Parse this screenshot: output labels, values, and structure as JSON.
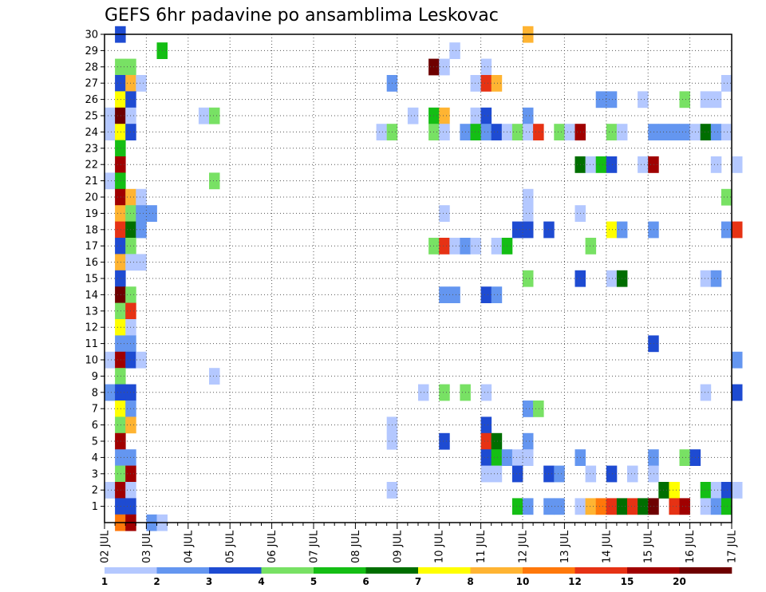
{
  "chart_data": {
    "type": "heatmap",
    "title": "GEFS 6hr padavine po ansamblima Leskovac",
    "xlabel": "",
    "ylabel": "",
    "x_tick_labels": [
      "02 JUL",
      "03 JUL",
      "04 JUL",
      "05 JUL",
      "06 JUL",
      "07 JUL",
      "08 JUL",
      "09 JUL",
      "10 JUL",
      "11 JUL",
      "12 JUL",
      "13 JUL",
      "14 JUL",
      "15 JUL",
      "16 JUL",
      "17 JUL"
    ],
    "y_tick_labels": [
      "1",
      "2",
      "3",
      "4",
      "5",
      "6",
      "7",
      "8",
      "9",
      "10",
      "11",
      "12",
      "13",
      "14",
      "15",
      "16",
      "17",
      "18",
      "19",
      "20",
      "21",
      "22",
      "23",
      "24",
      "25",
      "26",
      "27",
      "28",
      "29",
      "30"
    ],
    "x_range_steps": [
      0,
      60
    ],
    "y_range_members": [
      0,
      30
    ],
    "grid": true,
    "legend_placement": "bottom",
    "colorbar": {
      "labels": [
        "1",
        "2",
        "3",
        "4",
        "5",
        "6",
        "7",
        "8",
        "10",
        "12",
        "15",
        "20"
      ],
      "colors": [
        "#b4c8ff",
        "#6496f0",
        "#1e4bd2",
        "#78e164",
        "#14be14",
        "#006e00",
        "#ffff00",
        "#ffb432",
        "#ff780a",
        "#e63214",
        "#a00000",
        "#6e0000"
      ]
    },
    "cells": [
      [
        30,
        2.25,
        3
      ],
      [
        30,
        12,
        8
      ],
      [
        29,
        3.25,
        5
      ],
      [
        29,
        10.25,
        1
      ],
      [
        28,
        2.25,
        4
      ],
      [
        28,
        2.5,
        4
      ],
      [
        28,
        9.75,
        12
      ],
      [
        28,
        10,
        1
      ],
      [
        28,
        11,
        1
      ],
      [
        27,
        2.25,
        3
      ],
      [
        27,
        2.5,
        8
      ],
      [
        27,
        2.75,
        1
      ],
      [
        27,
        8.75,
        2
      ],
      [
        27,
        10.75,
        1
      ],
      [
        27,
        11,
        10
      ],
      [
        27,
        11.25,
        8
      ],
      [
        27,
        16.75,
        1
      ],
      [
        26,
        2.25,
        7
      ],
      [
        26,
        2.5,
        3
      ],
      [
        26,
        13.75,
        2
      ],
      [
        26,
        14,
        2
      ],
      [
        26,
        14.75,
        1
      ],
      [
        26,
        15.75,
        4
      ],
      [
        26,
        16.25,
        1
      ],
      [
        26,
        16.5,
        1
      ],
      [
        25,
        2,
        1
      ],
      [
        25,
        2.25,
        12
      ],
      [
        25,
        2.5,
        1
      ],
      [
        25,
        4.25,
        1
      ],
      [
        25,
        4.5,
        4
      ],
      [
        25,
        9.25,
        1
      ],
      [
        25,
        9.75,
        5
      ],
      [
        25,
        10,
        8
      ],
      [
        25,
        10.75,
        1
      ],
      [
        25,
        11,
        3
      ],
      [
        25,
        12,
        2
      ],
      [
        24,
        2,
        1
      ],
      [
        24,
        2.25,
        7
      ],
      [
        24,
        2.5,
        3
      ],
      [
        24,
        8.5,
        1
      ],
      [
        24,
        8.75,
        4
      ],
      [
        24,
        9.75,
        4
      ],
      [
        24,
        10,
        1
      ],
      [
        24,
        10.5,
        2
      ],
      [
        24,
        10.75,
        5
      ],
      [
        24,
        11,
        2
      ],
      [
        24,
        11.25,
        3
      ],
      [
        24,
        11.5,
        1
      ],
      [
        24,
        11.75,
        4
      ],
      [
        24,
        12,
        1
      ],
      [
        24,
        12.25,
        10
      ],
      [
        24,
        12.75,
        4
      ],
      [
        24,
        13,
        1
      ],
      [
        24,
        13.25,
        11
      ],
      [
        24,
        14,
        4
      ],
      [
        24,
        14.25,
        1
      ],
      [
        24,
        15,
        2
      ],
      [
        24,
        15.25,
        2
      ],
      [
        24,
        15.5,
        2
      ],
      [
        24,
        15.75,
        2
      ],
      [
        24,
        16,
        1
      ],
      [
        24,
        16.25,
        6
      ],
      [
        24,
        16.5,
        2
      ],
      [
        24,
        16.75,
        1
      ],
      [
        23,
        2.25,
        5
      ],
      [
        22,
        2.25,
        11
      ],
      [
        22,
        13.25,
        6
      ],
      [
        22,
        13.5,
        1
      ],
      [
        22,
        13.75,
        5
      ],
      [
        22,
        14,
        3
      ],
      [
        22,
        14.75,
        1
      ],
      [
        22,
        15,
        11
      ],
      [
        22,
        16.5,
        1
      ],
      [
        22,
        17,
        1
      ],
      [
        21,
        2,
        1
      ],
      [
        21,
        2.25,
        5
      ],
      [
        21,
        4.5,
        4
      ],
      [
        20,
        2.25,
        11
      ],
      [
        20,
        2.5,
        8
      ],
      [
        20,
        2.75,
        1
      ],
      [
        20,
        12,
        1
      ],
      [
        20,
        16.75,
        4
      ],
      [
        19,
        2.25,
        8
      ],
      [
        19,
        2.5,
        4
      ],
      [
        19,
        2.75,
        2
      ],
      [
        19,
        3,
        2
      ],
      [
        19,
        10,
        1
      ],
      [
        19,
        12,
        1
      ],
      [
        19,
        13.25,
        1
      ],
      [
        18,
        2.25,
        10
      ],
      [
        18,
        2.5,
        6
      ],
      [
        18,
        2.75,
        2
      ],
      [
        18,
        11.75,
        3
      ],
      [
        18,
        12,
        3
      ],
      [
        18,
        12.5,
        3
      ],
      [
        18,
        14,
        7
      ],
      [
        18,
        14.25,
        2
      ],
      [
        18,
        15,
        2
      ],
      [
        18,
        16.75,
        2
      ],
      [
        18,
        17,
        10
      ],
      [
        17,
        2.25,
        3
      ],
      [
        17,
        2.5,
        4
      ],
      [
        17,
        9.75,
        4
      ],
      [
        17,
        10,
        10
      ],
      [
        17,
        10.25,
        1
      ],
      [
        17,
        10.5,
        2
      ],
      [
        17,
        10.75,
        1
      ],
      [
        17,
        11.25,
        1
      ],
      [
        17,
        11.5,
        5
      ],
      [
        17,
        13.5,
        4
      ],
      [
        16,
        2.25,
        8
      ],
      [
        16,
        2.5,
        1
      ],
      [
        16,
        2.75,
        1
      ],
      [
        15,
        2.25,
        3
      ],
      [
        15,
        12,
        4
      ],
      [
        15,
        13.25,
        3
      ],
      [
        15,
        14,
        1
      ],
      [
        15,
        14.25,
        6
      ],
      [
        15,
        16.25,
        1
      ],
      [
        15,
        16.5,
        2
      ],
      [
        14,
        2.25,
        12
      ],
      [
        14,
        2.5,
        4
      ],
      [
        14,
        10,
        2
      ],
      [
        14,
        10.25,
        2
      ],
      [
        14,
        11,
        3
      ],
      [
        14,
        11.25,
        2
      ],
      [
        13,
        2.25,
        4
      ],
      [
        13,
        2.5,
        10
      ],
      [
        12,
        2.25,
        7
      ],
      [
        12,
        2.5,
        1
      ],
      [
        11,
        2.25,
        2
      ],
      [
        11,
        2.5,
        2
      ],
      [
        11,
        15,
        3
      ],
      [
        10,
        2,
        1
      ],
      [
        10,
        2.25,
        11
      ],
      [
        10,
        2.5,
        3
      ],
      [
        10,
        2.75,
        1
      ],
      [
        10,
        17,
        2
      ],
      [
        9,
        2.25,
        4
      ],
      [
        9,
        4.5,
        1
      ],
      [
        8,
        2,
        2
      ],
      [
        8,
        2.25,
        3
      ],
      [
        8,
        2.5,
        3
      ],
      [
        8,
        9.5,
        1
      ],
      [
        8,
        10,
        4
      ],
      [
        8,
        10.5,
        4
      ],
      [
        8,
        11,
        1
      ],
      [
        8,
        16.25,
        1
      ],
      [
        8,
        17,
        3
      ],
      [
        7,
        2.25,
        7
      ],
      [
        7,
        2.5,
        2
      ],
      [
        7,
        12,
        2
      ],
      [
        7,
        12.25,
        4
      ],
      [
        6,
        2.25,
        4
      ],
      [
        6,
        2.5,
        8
      ],
      [
        6,
        8.75,
        1
      ],
      [
        6,
        11,
        3
      ],
      [
        5,
        2.25,
        11
      ],
      [
        5,
        8.75,
        1
      ],
      [
        5,
        10,
        3
      ],
      [
        5,
        11,
        10
      ],
      [
        5,
        11.25,
        6
      ],
      [
        5,
        12,
        2
      ],
      [
        4,
        2.25,
        2
      ],
      [
        4,
        2.5,
        2
      ],
      [
        4,
        11,
        3
      ],
      [
        4,
        11.25,
        5
      ],
      [
        4,
        11.5,
        2
      ],
      [
        4,
        11.75,
        1
      ],
      [
        4,
        12,
        1
      ],
      [
        4,
        13.25,
        2
      ],
      [
        4,
        15,
        2
      ],
      [
        4,
        15.75,
        4
      ],
      [
        4,
        16,
        3
      ],
      [
        3,
        2.25,
        4
      ],
      [
        3,
        2.5,
        11
      ],
      [
        3,
        11,
        1
      ],
      [
        3,
        11.25,
        1
      ],
      [
        3,
        11.75,
        3
      ],
      [
        3,
        12.5,
        3
      ],
      [
        3,
        12.75,
        2
      ],
      [
        3,
        13.5,
        1
      ],
      [
        3,
        14,
        3
      ],
      [
        3,
        14.5,
        1
      ],
      [
        3,
        15,
        1
      ],
      [
        2,
        2,
        1
      ],
      [
        2,
        2.25,
        11
      ],
      [
        2,
        2.5,
        1
      ],
      [
        2,
        8.75,
        1
      ],
      [
        2,
        15.25,
        6
      ],
      [
        2,
        15.5,
        7
      ],
      [
        2,
        16.25,
        5
      ],
      [
        2,
        16.5,
        1
      ],
      [
        2,
        16.75,
        3
      ],
      [
        2,
        17,
        1
      ],
      [
        1,
        2.25,
        3
      ],
      [
        1,
        2.5,
        3
      ],
      [
        1,
        11.75,
        5
      ],
      [
        1,
        12,
        2
      ],
      [
        1,
        12.5,
        2
      ],
      [
        1,
        12.75,
        2
      ],
      [
        1,
        13.25,
        1
      ],
      [
        1,
        13.5,
        8
      ],
      [
        1,
        13.75,
        9
      ],
      [
        1,
        14,
        10
      ],
      [
        1,
        14.25,
        6
      ],
      [
        1,
        14.5,
        10
      ],
      [
        1,
        14.75,
        6
      ],
      [
        1,
        15,
        12
      ],
      [
        1,
        15.5,
        10
      ],
      [
        1,
        15.75,
        11
      ],
      [
        1,
        16.25,
        1
      ],
      [
        1,
        16.5,
        2
      ],
      [
        1,
        16.75,
        5
      ],
      [
        0,
        2.25,
        9
      ],
      [
        0,
        2.5,
        11
      ],
      [
        0,
        3,
        2
      ],
      [
        0,
        3.25,
        1
      ]
    ]
  }
}
